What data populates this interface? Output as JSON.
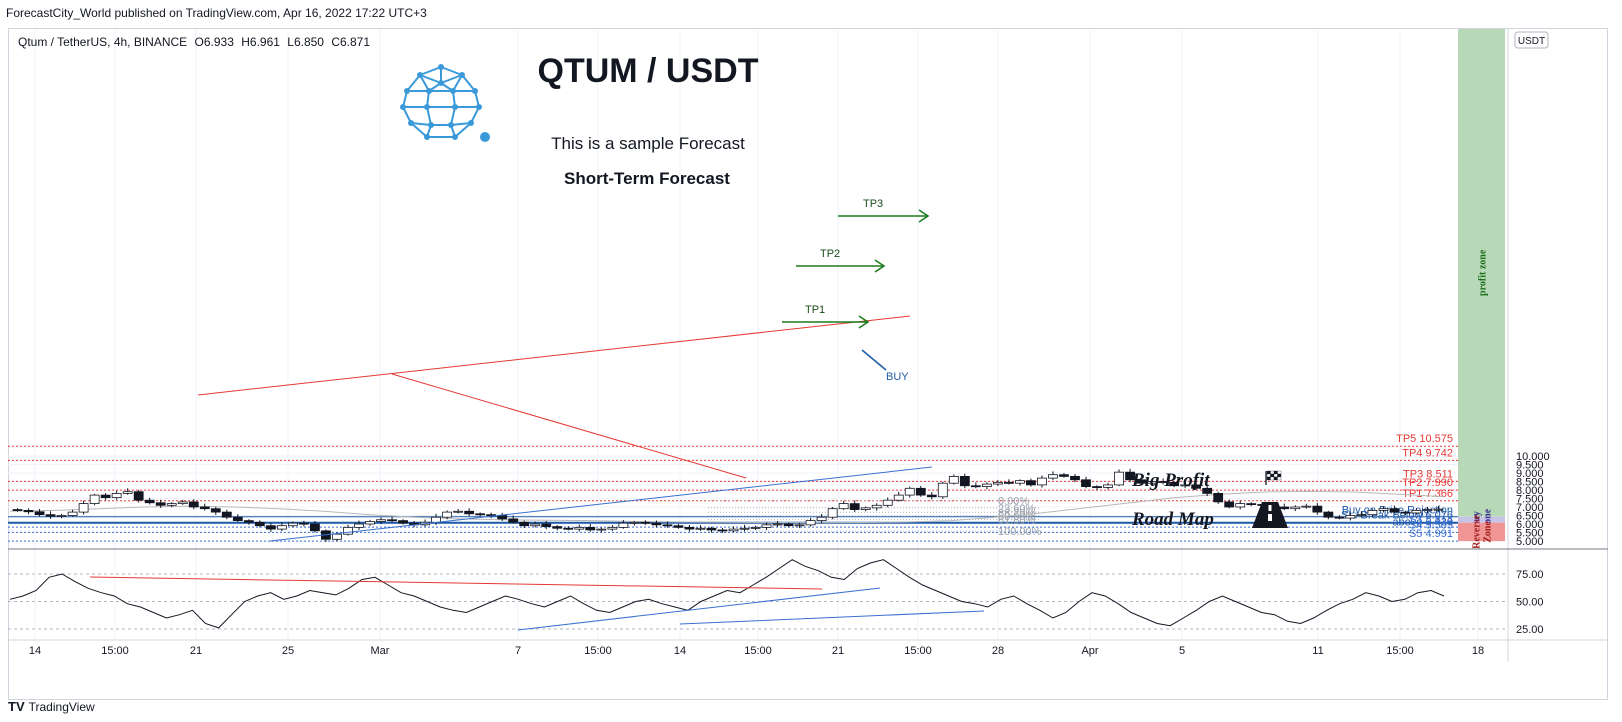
{
  "header": {
    "published": "ForecastCity_World published on TradingView.com, Apr 16, 2022 17:22 UTC+3"
  },
  "legend": {
    "symbol": "Qtum / TetherUS, 4h, BINANCE",
    "open": "O6.933",
    "high": "H6.961",
    "low": "L6.850",
    "close": "C6.871"
  },
  "currency_badge": "USDT",
  "title": "QTUM / USDT",
  "subtitle1": "This is a sample Forecast",
  "subtitle2": "Short-Term Forecast",
  "big_profit": "Big Profit",
  "road_map": "Road Map",
  "footer": {
    "brand": "TradingView"
  },
  "colors": {
    "tp": "#e53935",
    "support": "#1e5aa8",
    "profit_zone": "#b8d9b8",
    "buy_zone": "#c8c3e6",
    "reverse_zone": "#f19494",
    "target_arrow": "#1b7a1b",
    "trend_red": "#e53935",
    "trend_blue": "#3a6fd1",
    "logo": "#3a9ad9"
  },
  "icons": {
    "logo": "qtum-logo-icon",
    "flag": "checkered-flag-icon",
    "road": "road-icon"
  },
  "chart_data": {
    "type": "candlestick",
    "price_axis": {
      "ticks": [
        "10.000",
        "9.500",
        "9.000",
        "8.500",
        "8.000",
        "7.500",
        "7.000",
        "6.500",
        "6.000",
        "5.500",
        "5.000"
      ],
      "ylim": [
        4.95,
        10.6
      ]
    },
    "time_axis": {
      "ticks": [
        "14",
        "15:00",
        "21",
        "25",
        "Mar",
        "7",
        "15:00",
        "14",
        "15:00",
        "21",
        "15:00",
        "28",
        "Apr",
        "5",
        "11",
        "15:00",
        "18"
      ]
    },
    "levels": [
      {
        "label": "TP5 10.575",
        "value": 10.575,
        "color": "#e53935",
        "style": "dotted"
      },
      {
        "label": "TP4 9.742",
        "value": 9.742,
        "color": "#e53935",
        "style": "dotted"
      },
      {
        "label": "TP3 8.511",
        "value": 8.511,
        "color": "#e53935",
        "style": "dotted"
      },
      {
        "label": "TP2 7.990",
        "value": 7.99,
        "color": "#e53935",
        "style": "dotted"
      },
      {
        "label": "TP1 7.366",
        "value": 7.366,
        "color": "#e53935",
        "style": "dotted"
      },
      {
        "label": "Buy on Price Rejection above 6.430",
        "value": 6.43,
        "color": "#1e5aa8",
        "style": "solid"
      },
      {
        "label": "SL: Break Below 6.076",
        "value": 6.076,
        "color": "#1e5aa8",
        "style": "thick"
      },
      {
        "label": "S3 5.814",
        "value": 5.814,
        "color": "#3a6fd1",
        "style": "dotted"
      },
      {
        "label": "S4 5.505",
        "value": 5.505,
        "color": "#3a6fd1",
        "style": "dotted"
      },
      {
        "label": "S5 4.991",
        "value": 4.991,
        "color": "#3a6fd1",
        "style": "dotted"
      }
    ],
    "fibonacci": [
      {
        "label": "0.00%",
        "value": 7.37
      },
      {
        "label": "23.60%",
        "value": 6.95
      },
      {
        "label": "38.20%",
        "value": 6.69
      },
      {
        "label": "50.00%",
        "value": 6.48
      },
      {
        "label": "61.80%",
        "value": 6.27
      },
      {
        "label": "100.00%",
        "value": 5.59
      }
    ],
    "zones": [
      {
        "label": "profit zone",
        "from": 6.43,
        "to": 10.6
      },
      {
        "label": "Buy Zone",
        "from": 6.076,
        "to": 6.43
      },
      {
        "label": "Reverse Zone",
        "from": 4.991,
        "to": 6.076
      }
    ],
    "annotations": [
      {
        "label": "TP3"
      },
      {
        "label": "TP2"
      },
      {
        "label": "TP1"
      },
      {
        "label": "BUY"
      }
    ],
    "close_series": [
      6.8,
      6.72,
      6.55,
      6.46,
      6.5,
      6.7,
      7.2,
      7.7,
      7.55,
      7.8,
      7.9,
      7.4,
      7.25,
      7.1,
      7.2,
      7.3,
      7.0,
      6.9,
      6.7,
      6.4,
      6.2,
      6.1,
      5.9,
      5.7,
      5.9,
      6.05,
      6.0,
      5.6,
      5.1,
      5.4,
      5.8,
      6.0,
      6.15,
      6.25,
      6.2,
      6.05,
      5.95,
      6.1,
      6.4,
      6.7,
      6.75,
      6.6,
      6.55,
      6.5,
      6.3,
      6.1,
      5.9,
      6.0,
      5.85,
      5.75,
      5.7,
      5.8,
      5.65,
      5.7,
      5.8,
      6.05,
      6.1,
      6.05,
      5.95,
      5.9,
      5.8,
      5.7,
      5.75,
      5.65,
      5.6,
      5.7,
      5.75,
      5.8,
      5.95,
      6.0,
      5.9,
      5.95,
      6.2,
      6.4,
      6.9,
      7.2,
      6.85,
      6.95,
      7.1,
      7.4,
      7.7,
      8.1,
      7.7,
      7.6,
      8.4,
      8.8,
      8.25,
      8.2,
      8.35,
      8.45,
      8.4,
      8.55,
      8.3,
      8.7,
      8.9,
      8.8,
      8.6,
      8.2,
      8.15,
      8.3,
      9.05,
      8.6,
      8.4,
      8.5,
      8.45,
      8.25,
      8.3,
      8.1,
      7.8,
      7.3,
      7.0,
      7.2,
      7.15,
      7.1,
      7.0,
      6.9,
      7.0,
      7.05,
      6.7,
      6.4,
      6.35,
      6.5,
      6.55,
      6.8,
      6.9,
      6.7,
      6.65,
      6.8,
      6.85,
      6.87
    ],
    "moving_average": [
      6.75,
      6.8,
      6.9,
      7.0,
      7.05,
      7.0,
      6.9,
      6.75,
      6.55,
      6.4,
      6.3,
      6.25,
      6.22,
      6.2,
      6.15,
      6.12,
      6.1,
      6.09,
      6.08,
      6.09,
      6.12,
      6.2,
      6.4,
      6.65,
      6.95,
      7.25,
      7.55,
      7.75,
      7.88,
      7.92,
      7.88,
      7.75,
      7.6
    ],
    "oscillator": {
      "ticks": [
        "75.00",
        "50.00",
        "25.00"
      ],
      "ylim": [
        20,
        95
      ],
      "values": [
        52,
        55,
        60,
        72,
        75,
        68,
        62,
        58,
        55,
        48,
        45,
        40,
        35,
        38,
        42,
        30,
        26,
        38,
        50,
        55,
        58,
        52,
        55,
        60,
        58,
        56,
        62,
        70,
        72,
        65,
        58,
        55,
        50,
        45,
        42,
        40,
        45,
        50,
        55,
        52,
        48,
        45,
        50,
        55,
        48,
        42,
        40,
        45,
        50,
        52,
        48,
        45,
        42,
        50,
        55,
        60,
        58,
        65,
        72,
        80,
        88,
        82,
        78,
        72,
        70,
        80,
        85,
        88,
        80,
        72,
        65,
        60,
        55,
        50,
        48,
        45,
        52,
        55,
        48,
        42,
        35,
        40,
        50,
        58,
        55,
        48,
        40,
        35,
        30,
        28,
        35,
        42,
        50,
        55,
        50,
        45,
        40,
        38,
        32,
        30,
        35,
        42,
        48,
        52,
        58,
        55,
        50,
        52,
        58,
        60,
        55
      ]
    }
  }
}
